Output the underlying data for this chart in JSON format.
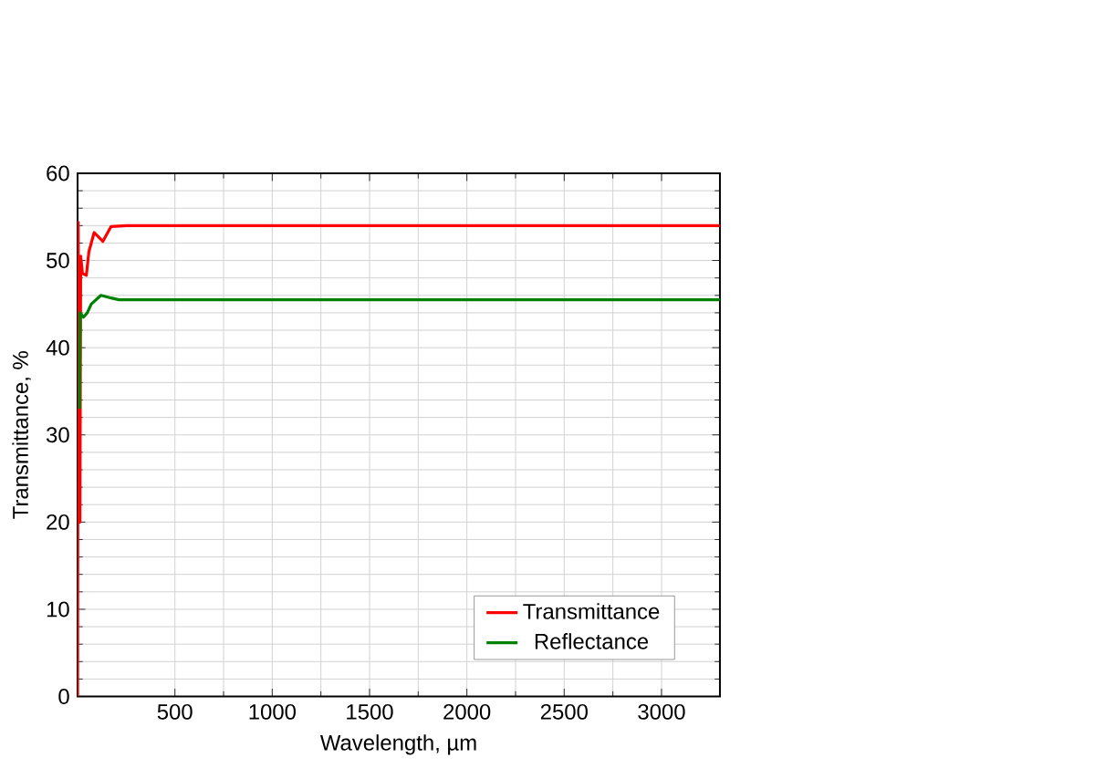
{
  "chart_data": {
    "type": "line",
    "xlabel": "Wavelength, µm",
    "ylabel": "Transmittance, %",
    "xlim": [
      0,
      3300
    ],
    "ylim": [
      0,
      60
    ],
    "xticks": [
      500,
      1000,
      1500,
      2000,
      2500,
      3000
    ],
    "yticks": [
      0,
      10,
      20,
      30,
      40,
      50,
      60
    ],
    "grid": true,
    "legend": "bottom right",
    "marker": "none",
    "line_style": "solid",
    "series": [
      {
        "name": "Transmittance",
        "color": "#ff0000",
        "x": [
          0,
          3,
          8,
          12,
          16,
          25,
          45,
          58,
          85,
          130,
          172,
          250,
          3300
        ],
        "values": [
          0,
          54.4,
          20,
          20,
          50.5,
          48.5,
          48.3,
          51,
          53.2,
          52.2,
          53.9,
          54,
          54
        ]
      },
      {
        "name": "Reflectance",
        "color": "#008000",
        "x": [
          10,
          13,
          30,
          50,
          70,
          120,
          172,
          213,
          3300
        ],
        "values": [
          33,
          44,
          43.5,
          44,
          45,
          46,
          45.7,
          45.5,
          45.5
        ]
      }
    ]
  }
}
